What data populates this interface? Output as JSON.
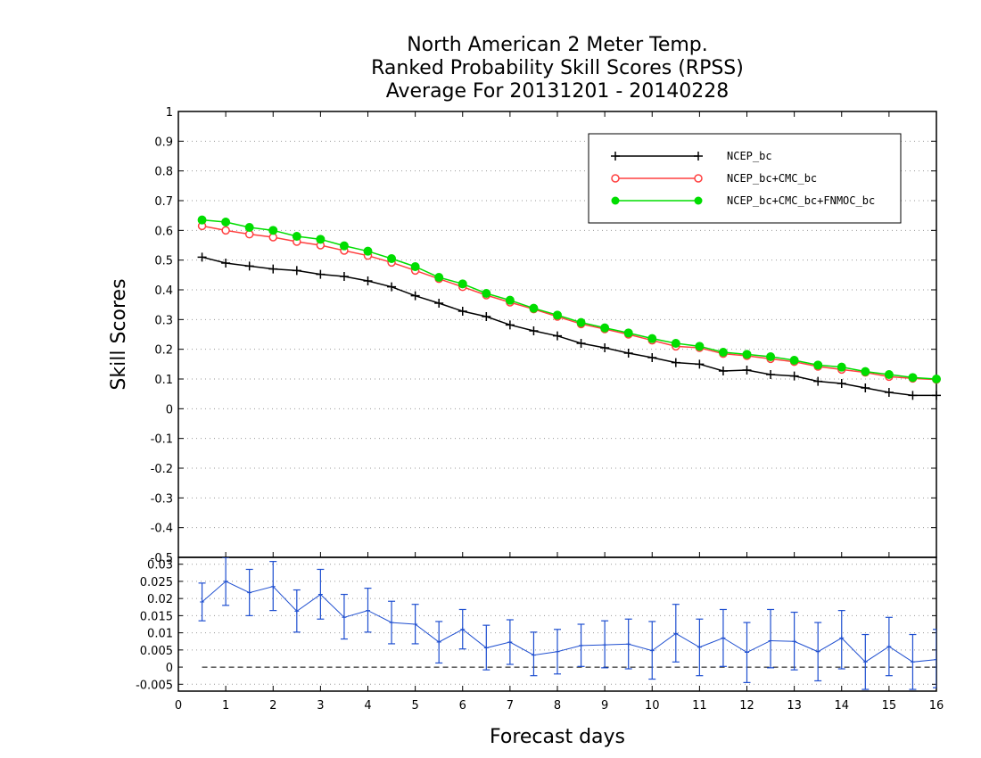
{
  "chart_data": [
    {
      "type": "line",
      "title_lines": [
        "North American 2 Meter Temp.",
        "Ranked Probability Skill Scores (RPSS)",
        "Average For 20131201 - 20140228"
      ],
      "xlabel": "Forecast days",
      "ylabel": "Skill Scores",
      "xlim": [
        0,
        16
      ],
      "ylim": [
        -0.5,
        1
      ],
      "xticks": [
        "0",
        "1",
        "2",
        "3",
        "4",
        "5",
        "6",
        "7",
        "8",
        "9",
        "10",
        "11",
        "12",
        "13",
        "14",
        "15",
        "16"
      ],
      "yticks": [
        "-0.5",
        "-0.4",
        "-0.3",
        "-0.2",
        "-0.1",
        "0",
        "0.1",
        "0.2",
        "0.3",
        "0.4",
        "0.5",
        "0.6",
        "0.7",
        "0.8",
        "0.9",
        "1"
      ],
      "grid": true,
      "legend_position": "top-right",
      "x": [
        0.5,
        1,
        1.5,
        2,
        2.5,
        3,
        3.5,
        4,
        4.5,
        5,
        5.5,
        6,
        6.5,
        7,
        7.5,
        8,
        8.5,
        9,
        9.5,
        10,
        10.5,
        11,
        11.5,
        12,
        12.5,
        13,
        13.5,
        14,
        14.5,
        15,
        15.5,
        16
      ],
      "series": [
        {
          "name": "NCEP_bc",
          "color": "#000000",
          "marker": "plus",
          "values": [
            0.51,
            0.49,
            0.48,
            0.47,
            0.465,
            0.452,
            0.445,
            0.43,
            0.41,
            0.38,
            0.355,
            0.328,
            0.31,
            0.282,
            0.262,
            0.245,
            0.22,
            0.205,
            0.187,
            0.172,
            0.155,
            0.15,
            0.127,
            0.13,
            0.115,
            0.11,
            0.092,
            0.085,
            0.07,
            0.055,
            0.045,
            0.045
          ]
        },
        {
          "name": "NCEP_bc+CMC_bc",
          "color": "#ff4040",
          "marker": "open-circle",
          "values": [
            0.615,
            0.6,
            0.587,
            0.577,
            0.562,
            0.55,
            0.532,
            0.515,
            0.492,
            0.465,
            0.437,
            0.41,
            0.382,
            0.358,
            0.335,
            0.31,
            0.285,
            0.268,
            0.25,
            0.23,
            0.21,
            0.205,
            0.185,
            0.178,
            0.168,
            0.158,
            0.142,
            0.132,
            0.122,
            0.108,
            0.102,
            0.098
          ]
        },
        {
          "name": "NCEP_bc+CMC_bc+FNMOC_bc",
          "color": "#00dd00",
          "marker": "filled-circle",
          "values": [
            0.635,
            0.628,
            0.61,
            0.6,
            0.58,
            0.57,
            0.548,
            0.53,
            0.505,
            0.478,
            0.442,
            0.42,
            0.388,
            0.365,
            0.338,
            0.315,
            0.29,
            0.272,
            0.255,
            0.236,
            0.22,
            0.21,
            0.19,
            0.183,
            0.175,
            0.163,
            0.147,
            0.14,
            0.125,
            0.115,
            0.105,
            0.1
          ]
        }
      ]
    },
    {
      "type": "line",
      "xlim": [
        0,
        16
      ],
      "ylim": [
        -0.007,
        0.032
      ],
      "yticks": [
        "-0.005",
        "0",
        "0.005",
        "0.01",
        "0.015",
        "0.02",
        "0.025",
        "0.03"
      ],
      "zero_line": "dashed",
      "color": "#1f4fd0",
      "x": [
        0.5,
        1,
        1.5,
        2,
        2.5,
        3,
        3.5,
        4,
        4.5,
        5,
        5.5,
        6,
        6.5,
        7,
        7.5,
        8,
        8.5,
        9,
        9.5,
        10,
        10.5,
        11,
        11.5,
        12,
        12.5,
        13,
        13.5,
        14,
        14.5,
        15,
        15.5,
        16
      ],
      "values": [
        0.019,
        0.025,
        0.0217,
        0.0235,
        0.0163,
        0.0212,
        0.0145,
        0.0165,
        0.013,
        0.0125,
        0.0073,
        0.011,
        0.0056,
        0.0073,
        0.0035,
        0.0045,
        0.0063,
        0.0065,
        0.0067,
        0.0048,
        0.0098,
        0.0058,
        0.0085,
        0.0043,
        0.0077,
        0.0075,
        0.0045,
        0.0085,
        0.0015,
        0.006,
        0.0015,
        0.0022
      ],
      "lower": [
        0.0135,
        0.018,
        0.015,
        0.0165,
        0.0102,
        0.014,
        0.0082,
        0.0102,
        0.0068,
        0.0068,
        0.0012,
        0.0053,
        -0.0008,
        0.0008,
        -0.0025,
        -0.002,
        0.0002,
        -0.0002,
        -0.0005,
        -0.0035,
        0.0015,
        -0.0025,
        0.0002,
        -0.0045,
        -0.0002,
        -0.0008,
        -0.004,
        -0.0005,
        -0.0065,
        -0.0025,
        -0.0065,
        -0.006
      ],
      "upper": [
        0.0245,
        0.032,
        0.0285,
        0.0308,
        0.0225,
        0.0285,
        0.0212,
        0.023,
        0.0192,
        0.0183,
        0.0133,
        0.0168,
        0.0122,
        0.0138,
        0.0102,
        0.011,
        0.0125,
        0.0135,
        0.014,
        0.0133,
        0.0183,
        0.014,
        0.0168,
        0.013,
        0.0168,
        0.016,
        0.013,
        0.0165,
        0.0095,
        0.0145,
        0.0095,
        0.011
      ]
    }
  ]
}
